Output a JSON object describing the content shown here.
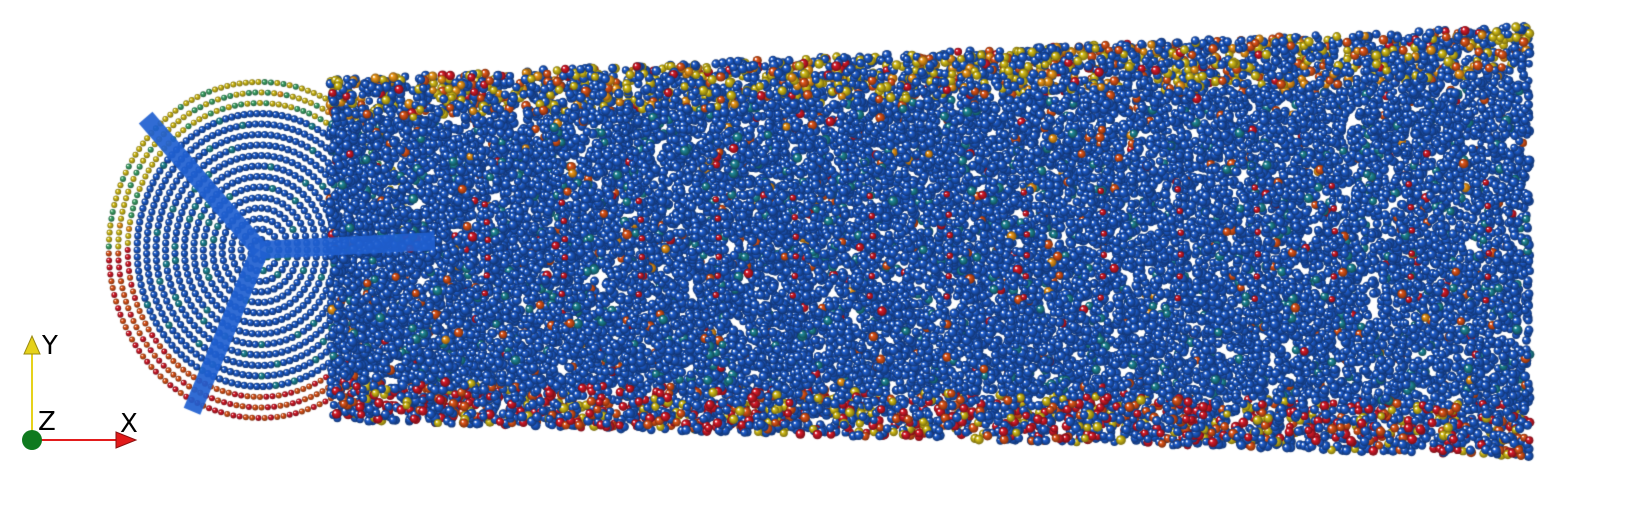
{
  "scene": {
    "background_color": "#ffffff",
    "particle_colormap": [
      "#1f5fd0",
      "#2a7fc6",
      "#1f8a9a",
      "#3fa86a",
      "#d8c21a",
      "#f09a1a",
      "#e2561a",
      "#d81a2a"
    ],
    "blade_color": "#1f5fd0",
    "blade_count": 3
  },
  "axes": {
    "x_label": "X",
    "y_label": "Y",
    "z_label": "Z",
    "x_color": "#e21b1b",
    "y_color": "#e6d21a",
    "z_color": "#0f7a1f"
  }
}
